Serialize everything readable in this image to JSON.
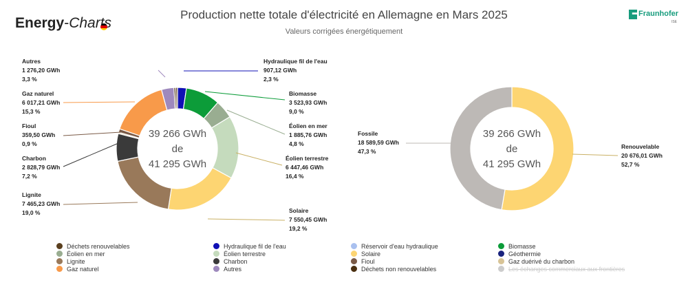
{
  "header": {
    "logo_main": "Energy",
    "logo_dash": "-",
    "logo_sub": "Charts",
    "title": "Production nette totale d'électricité en Allemagne en Mars 2025",
    "subtitle": "Valeurs corrigées énergétiquement",
    "brand_name": "Fraunhofer",
    "brand_sub": "ISE",
    "flag_colors": [
      "#000000",
      "#dd0000",
      "#ffce00"
    ]
  },
  "chart_data": [
    {
      "type": "pie",
      "donut": true,
      "center_lines": [
        "39 266 GWh",
        "de",
        "41 295 GWh"
      ],
      "series": [
        {
          "name": "Déchets renouvelables",
          "value_gwh": 0,
          "value_label": "",
          "share_label": "",
          "color": "#5a3f1e",
          "labeled": false
        },
        {
          "name": "Hydraulique fil de l'eau",
          "value_gwh": 907.12,
          "value_label": "907,12 GWh",
          "share_label": "2,3 %",
          "color": "#0f10b5",
          "labeled": true
        },
        {
          "name": "Biomasse",
          "value_gwh": 3523.93,
          "value_label": "3 523,93 GWh",
          "share_label": "9,0 %",
          "color": "#0c9c39",
          "labeled": true
        },
        {
          "name": "Éolien en mer",
          "value_gwh": 1885.76,
          "value_label": "1 885,76 GWh",
          "share_label": "4,8 %",
          "color": "#99ad91",
          "labeled": true
        },
        {
          "name": "Éolien terrestre",
          "value_gwh": 6447.46,
          "value_label": "6 447,46 GWh",
          "share_label": "16,4 %",
          "color": "#c5dbbd",
          "labeled": true
        },
        {
          "name": "Solaire",
          "value_gwh": 7550.45,
          "value_label": "7 550,45 GWh",
          "share_label": "19,2 %",
          "color": "#fdd572",
          "labeled": true
        },
        {
          "name": "Lignite",
          "value_gwh": 7465.23,
          "value_label": "7 465,23 GWh",
          "share_label": "19,0 %",
          "color": "#99795a",
          "labeled": true
        },
        {
          "name": "Charbon",
          "value_gwh": 2828.79,
          "value_label": "2 828,79 GWh",
          "share_label": "7,2 %",
          "color": "#3a3a3a",
          "labeled": true
        },
        {
          "name": "Gaz duérivé du charbon",
          "value_gwh": 130,
          "value_label": "",
          "share_label": "",
          "color": "#d8c497",
          "labeled": false
        },
        {
          "name": "Fioul",
          "value_gwh": 359.5,
          "value_label": "359,50 GWh",
          "share_label": "0,9 %",
          "color": "#7a5a46",
          "labeled": true
        },
        {
          "name": "Gaz naturel",
          "value_gwh": 6017.21,
          "value_label": "6 017,21 GWh",
          "share_label": "15,3 %",
          "color": "#f89a4a",
          "labeled": true
        },
        {
          "name": "Autres",
          "value_gwh": 1276.2,
          "value_label": "1 276,20 GWh",
          "share_label": "3,3 %",
          "color": "#9e89bd",
          "labeled": true
        },
        {
          "name": "Déchets non renouvelables",
          "value_gwh": 180,
          "value_label": "",
          "share_label": "",
          "color": "#4a2f10",
          "labeled": false
        },
        {
          "name": "Déchets renouvelables",
          "value_gwh": 180,
          "value_label": "",
          "share_label": "",
          "color": "#5a3f1e",
          "labeled": false
        }
      ]
    },
    {
      "type": "pie",
      "donut": true,
      "center_lines": [
        "39 266 GWh",
        "de",
        "41 295 GWh"
      ],
      "series": [
        {
          "name": "Renouvelable",
          "value_gwh": 20676.01,
          "value_label": "20 676,01 GWh",
          "share_label": "52,7 %",
          "color": "#fdd572",
          "labeled": true
        },
        {
          "name": "Fossile",
          "value_gwh": 18589.59,
          "value_label": "18 589,59 GWh",
          "share_label": "47,3 %",
          "color": "#bdb9b6",
          "labeled": true
        }
      ]
    }
  ],
  "legend": [
    {
      "label": "Déchets renouvelables",
      "color": "#5a3f1e",
      "active": true
    },
    {
      "label": "Hydraulique fil de l'eau",
      "color": "#0f10b5",
      "active": true
    },
    {
      "label": "Réservoir d'eau hydraulique",
      "color": "#a9c0ef",
      "active": true
    },
    {
      "label": "Biomasse",
      "color": "#0c9c39",
      "active": true
    },
    {
      "label": "Éolien en mer",
      "color": "#99ad91",
      "active": true
    },
    {
      "label": "Éolien terrestre",
      "color": "#c5dbbd",
      "active": true
    },
    {
      "label": "Solaire",
      "color": "#fdd572",
      "active": true
    },
    {
      "label": "Géothermie",
      "color": "#1a237e",
      "active": true
    },
    {
      "label": "Lignite",
      "color": "#99795a",
      "active": true
    },
    {
      "label": "Charbon",
      "color": "#3a3a3a",
      "active": true
    },
    {
      "label": "Fioul",
      "color": "#7a5a46",
      "active": true
    },
    {
      "label": "Gaz duérivé du charbon",
      "color": "#d8c497",
      "active": true
    },
    {
      "label": "Gaz naturel",
      "color": "#f89a4a",
      "active": true
    },
    {
      "label": "Autres",
      "color": "#9e89bd",
      "active": true
    },
    {
      "label": "Déchets non renouvelables",
      "color": "#4a2f10",
      "active": true
    },
    {
      "label": "Les échanges commerciaux aux frontières",
      "color": "#cccccc",
      "active": false
    }
  ]
}
